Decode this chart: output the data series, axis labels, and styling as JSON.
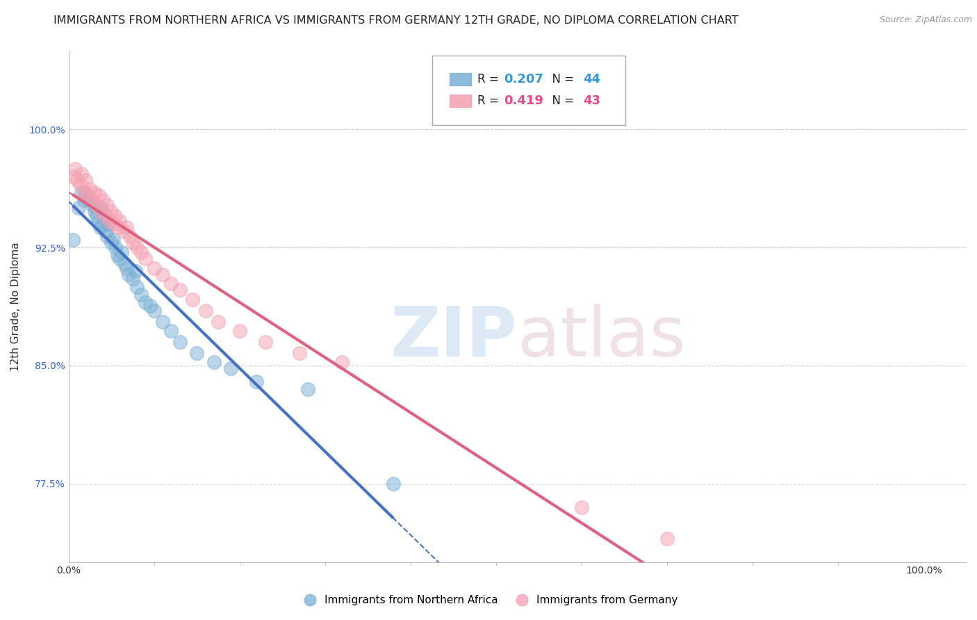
{
  "title": "IMMIGRANTS FROM NORTHERN AFRICA VS IMMIGRANTS FROM GERMANY 12TH GRADE, NO DIPLOMA CORRELATION CHART",
  "source": "Source: ZipAtlas.com",
  "ylabel": "12th Grade, No Diploma",
  "xlim": [
    0.0,
    1.05
  ],
  "ylim": [
    0.725,
    1.05
  ],
  "blue_R": 0.207,
  "blue_N": 44,
  "pink_R": 0.419,
  "pink_N": 43,
  "legend_label_blue": "Immigrants from Northern Africa",
  "legend_label_pink": "Immigrants from Germany",
  "blue_color": "#7BAFD4",
  "pink_color": "#F4A0B0",
  "blue_line_color": "#4472C4",
  "pink_line_color": "#E06080",
  "grid_color": "#CCCCCC",
  "background_color": "#FFFFFF",
  "title_fontsize": 11.5,
  "axis_label_fontsize": 11,
  "tick_fontsize": 10,
  "blue_scatter_x": [
    0.005,
    0.012,
    0.015,
    0.018,
    0.02,
    0.022,
    0.025,
    0.028,
    0.03,
    0.032,
    0.033,
    0.035,
    0.037,
    0.038,
    0.04,
    0.042,
    0.043,
    0.045,
    0.047,
    0.05,
    0.052,
    0.055,
    0.057,
    0.06,
    0.062,
    0.065,
    0.068,
    0.07,
    0.075,
    0.078,
    0.08,
    0.085,
    0.09,
    0.095,
    0.1,
    0.11,
    0.12,
    0.13,
    0.15,
    0.17,
    0.19,
    0.22,
    0.28,
    0.38
  ],
  "blue_scatter_y": [
    0.93,
    0.95,
    0.96,
    0.955,
    0.96,
    0.957,
    0.955,
    0.952,
    0.948,
    0.95,
    0.945,
    0.942,
    0.938,
    0.95,
    0.94,
    0.945,
    0.935,
    0.932,
    0.94,
    0.928,
    0.93,
    0.925,
    0.92,
    0.918,
    0.922,
    0.915,
    0.912,
    0.908,
    0.905,
    0.91,
    0.9,
    0.895,
    0.89,
    0.888,
    0.885,
    0.878,
    0.872,
    0.865,
    0.858,
    0.852,
    0.848,
    0.84,
    0.835,
    0.775
  ],
  "pink_scatter_x": [
    0.005,
    0.008,
    0.01,
    0.013,
    0.015,
    0.018,
    0.02,
    0.022,
    0.025,
    0.027,
    0.03,
    0.032,
    0.035,
    0.038,
    0.04,
    0.043,
    0.045,
    0.048,
    0.05,
    0.053,
    0.055,
    0.058,
    0.06,
    0.065,
    0.068,
    0.072,
    0.075,
    0.08,
    0.085,
    0.09,
    0.1,
    0.11,
    0.12,
    0.13,
    0.145,
    0.16,
    0.175,
    0.2,
    0.23,
    0.27,
    0.32,
    0.6,
    0.7
  ],
  "pink_scatter_y": [
    0.97,
    0.975,
    0.968,
    0.965,
    0.972,
    0.96,
    0.968,
    0.958,
    0.962,
    0.955,
    0.96,
    0.952,
    0.958,
    0.948,
    0.955,
    0.945,
    0.952,
    0.942,
    0.948,
    0.94,
    0.945,
    0.938,
    0.942,
    0.935,
    0.938,
    0.932,
    0.928,
    0.925,
    0.922,
    0.918,
    0.912,
    0.908,
    0.902,
    0.898,
    0.892,
    0.885,
    0.878,
    0.872,
    0.865,
    0.858,
    0.852,
    0.76,
    0.74
  ]
}
